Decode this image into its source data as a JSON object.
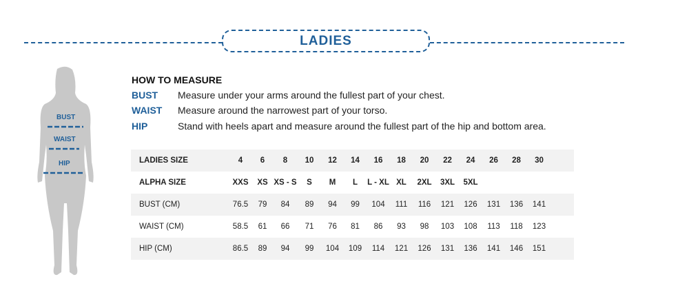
{
  "header": {
    "title": "LADIES"
  },
  "figure": {
    "labels": [
      "BUST",
      "WAIST",
      "HIP"
    ]
  },
  "how_to": {
    "title": "HOW TO MEASURE",
    "items": [
      {
        "key": "BUST",
        "text": "Measure under your arms around the fullest part of your chest."
      },
      {
        "key": "WAIST",
        "text": "Measure around the narrowest part of your torso."
      },
      {
        "key": "HIP",
        "text": "Stand with heels apart and measure around the fullest part of the hip and bottom area."
      }
    ]
  },
  "table": {
    "rows": [
      {
        "label": "LADIES SIZE",
        "bold": true,
        "values": [
          "4",
          "6",
          "8",
          "10",
          "12",
          "14",
          "16",
          "18",
          "20",
          "22",
          "24",
          "26",
          "28",
          "30"
        ]
      },
      {
        "label": "ALPHA SIZE",
        "bold": true,
        "values": [
          "XXS",
          "XS",
          "XS - S",
          "S",
          "M",
          "L",
          "L - XL",
          "XL",
          "2XL",
          "3XL",
          "5XL",
          "",
          "",
          ""
        ]
      },
      {
        "label": "BUST (CM)",
        "values": [
          "76.5",
          "79",
          "84",
          "89",
          "94",
          "99",
          "104",
          "111",
          "116",
          "121",
          "126",
          "131",
          "136",
          "141"
        ]
      },
      {
        "label": "WAIST (CM)",
        "values": [
          "58.5",
          "61",
          "66",
          "71",
          "76",
          "81",
          "86",
          "93",
          "98",
          "103",
          "108",
          "113",
          "118",
          "123"
        ]
      },
      {
        "label": "HIP (CM)",
        "values": [
          "86.5",
          "89",
          "94",
          "99",
          "104",
          "109",
          "114",
          "121",
          "126",
          "131",
          "136",
          "141",
          "146",
          "151"
        ]
      }
    ]
  },
  "colors": {
    "accent": "#1f5f99",
    "silhouette": "#c8c8c8",
    "row_alt": "#f2f2f2"
  }
}
